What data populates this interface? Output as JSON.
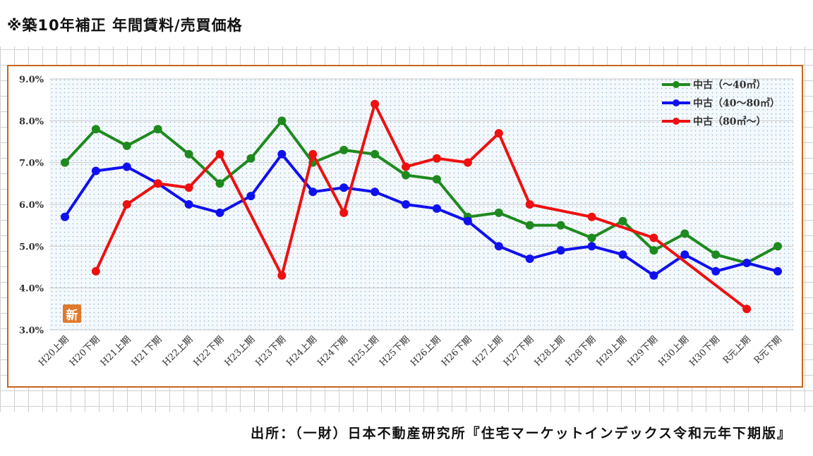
{
  "page": {
    "title": "※築10年補正 年間賃料/売買価格",
    "source": "出所：（一財）日本不動産研究所『住宅マーケットインデックス令和元年下期版』",
    "badge": "新"
  },
  "chart_data": {
    "type": "line",
    "categories": [
      "H20上期",
      "H20下期",
      "H21上期",
      "H21下期",
      "H22上期",
      "H22下期",
      "H23上期",
      "H23下期",
      "H24上期",
      "H24下期",
      "H25上期",
      "H25下期",
      "H26上期",
      "H26下期",
      "H27上期",
      "H27下期",
      "H28上期",
      "H28下期",
      "H29上期",
      "H29下期",
      "H30上期",
      "H30下期",
      "R元上期",
      "R元下期"
    ],
    "y_ticks": [
      "9.0%",
      "8.0%",
      "7.0%",
      "6.0%",
      "5.0%",
      "4.0%",
      "3.0%"
    ],
    "ylim": [
      3.0,
      9.0
    ],
    "grid": true,
    "legend_position": "top-right",
    "series": [
      {
        "name": "中古（～40㎡）",
        "color": "#1e8a1e",
        "values": [
          7.0,
          7.8,
          7.4,
          7.8,
          7.2,
          6.5,
          7.1,
          8.0,
          7.0,
          7.3,
          7.2,
          6.7,
          6.6,
          5.7,
          5.8,
          5.5,
          5.5,
          5.2,
          5.6,
          4.9,
          5.3,
          4.8,
          4.6,
          5.0
        ]
      },
      {
        "name": "中古（40～80㎡）",
        "color": "#1010ee",
        "values": [
          5.7,
          6.8,
          6.9,
          6.5,
          6.0,
          5.8,
          6.2,
          7.2,
          6.3,
          6.4,
          6.3,
          6.0,
          5.9,
          5.6,
          5.0,
          4.7,
          4.9,
          5.0,
          4.8,
          4.3,
          4.8,
          4.4,
          4.6,
          4.4
        ]
      },
      {
        "name": "中古（80㎡～）",
        "color": "#ee1010",
        "values": [
          null,
          4.4,
          6.0,
          6.5,
          6.4,
          7.2,
          null,
          4.3,
          7.2,
          5.8,
          8.4,
          6.9,
          7.1,
          7.0,
          7.7,
          6.0,
          null,
          5.7,
          null,
          5.2,
          null,
          null,
          3.5,
          null
        ]
      }
    ]
  }
}
